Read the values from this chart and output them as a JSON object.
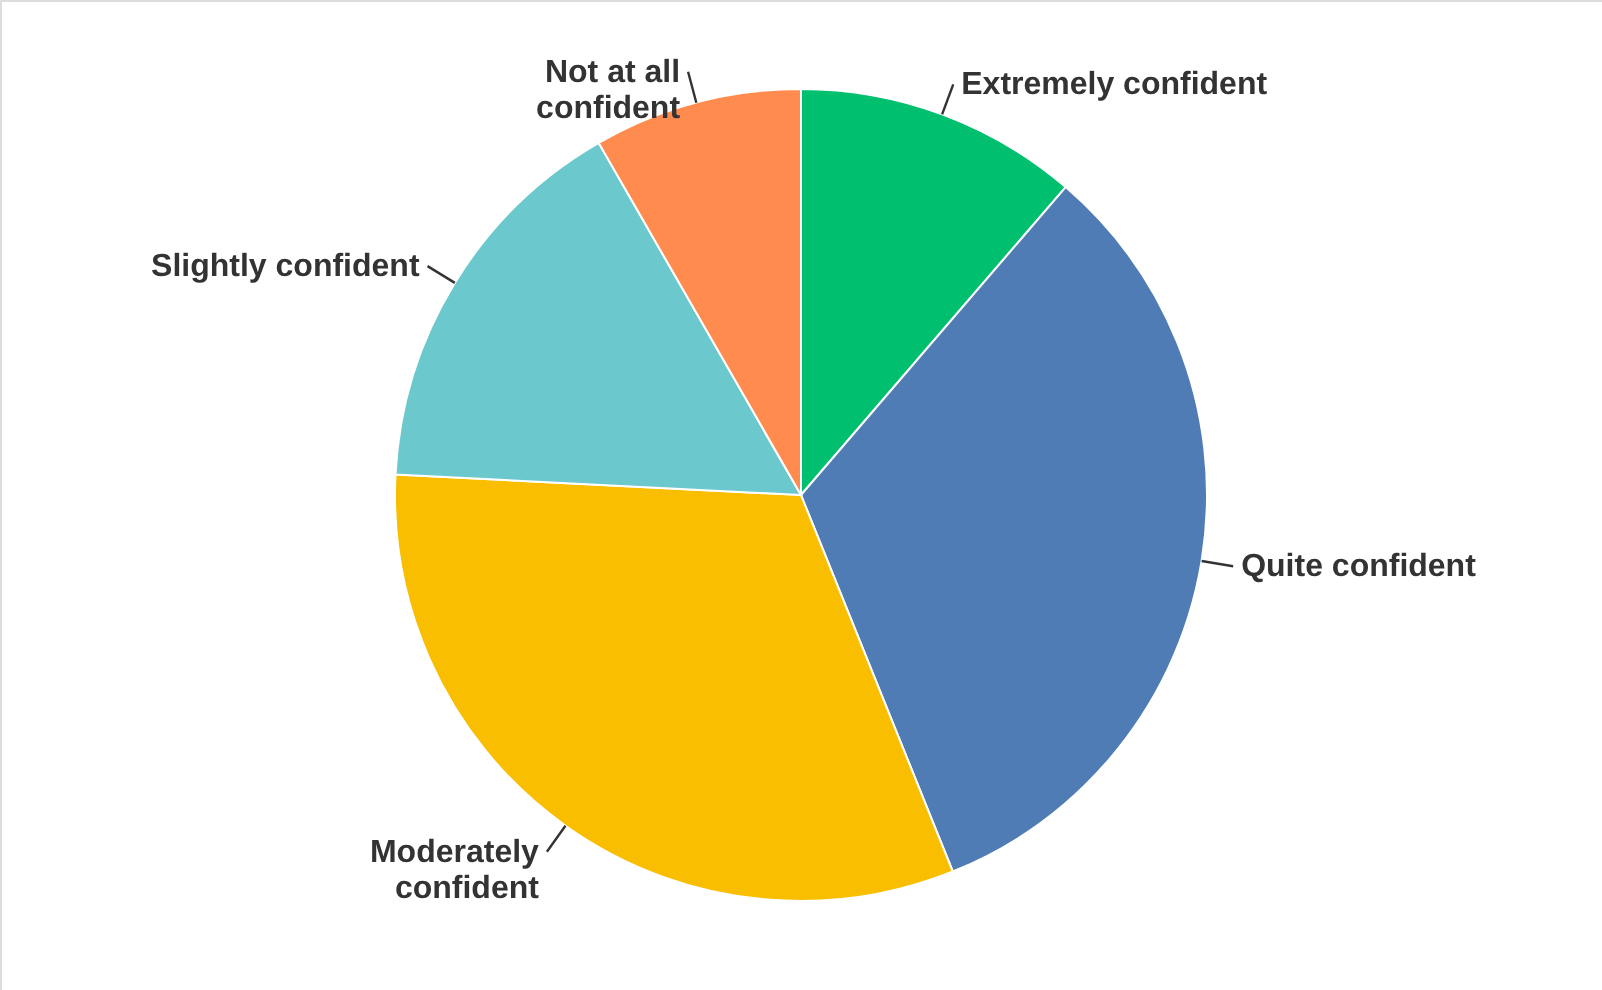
{
  "chart_data": {
    "type": "pie",
    "categories": [
      "Extremely confident",
      "Quite confident",
      "Moderately\nconfident",
      "Slightly confident",
      "Not at all\nconfident"
    ],
    "values": [
      11.3,
      32.6,
      31.9,
      15.9,
      8.3
    ],
    "colors": [
      "#00bf6f",
      "#507cb6",
      "#f9be00",
      "#6bc8cd",
      "#ff8b4f"
    ]
  }
}
